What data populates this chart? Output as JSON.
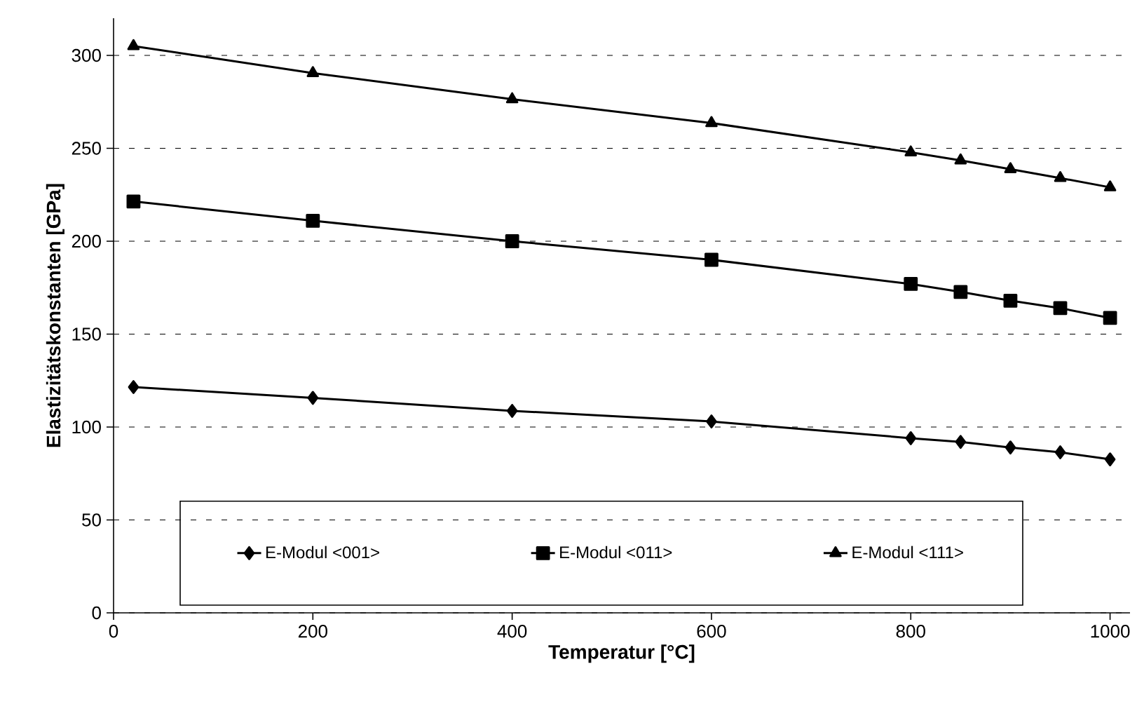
{
  "chart_data": {
    "type": "line",
    "xlabel": "Temperatur [°C]",
    "ylabel": "Elastizitätskonstanten [GPa]",
    "x": [
      20,
      200,
      400,
      600,
      800,
      850,
      900,
      950,
      1000
    ],
    "series": [
      {
        "name": "E-Modul <001>",
        "color": "#000000",
        "marker": "diamond",
        "values": [
          121.5,
          115.7,
          108.7,
          103,
          94,
          92,
          89,
          86.4,
          82.6
        ]
      },
      {
        "name": "E-Modul <011>",
        "color": "#000000",
        "marker": "square",
        "values": [
          221.4,
          211,
          200,
          190,
          177,
          172.7,
          168,
          164,
          158.7
        ]
      },
      {
        "name": "E-Modul <111>",
        "color": "#000000",
        "marker": "triangle",
        "values": [
          305,
          290.5,
          276.4,
          263.6,
          247.8,
          243.5,
          238.8,
          234,
          229
        ]
      }
    ],
    "xlim": [
      0,
      1020
    ],
    "ylim": [
      0,
      320
    ],
    "xticks": [
      0,
      200,
      400,
      600,
      800,
      1000
    ],
    "yticks": [
      0,
      50,
      100,
      150,
      200,
      250,
      300
    ],
    "grid": "y",
    "legend": "bottom",
    "line_style": "solid"
  }
}
